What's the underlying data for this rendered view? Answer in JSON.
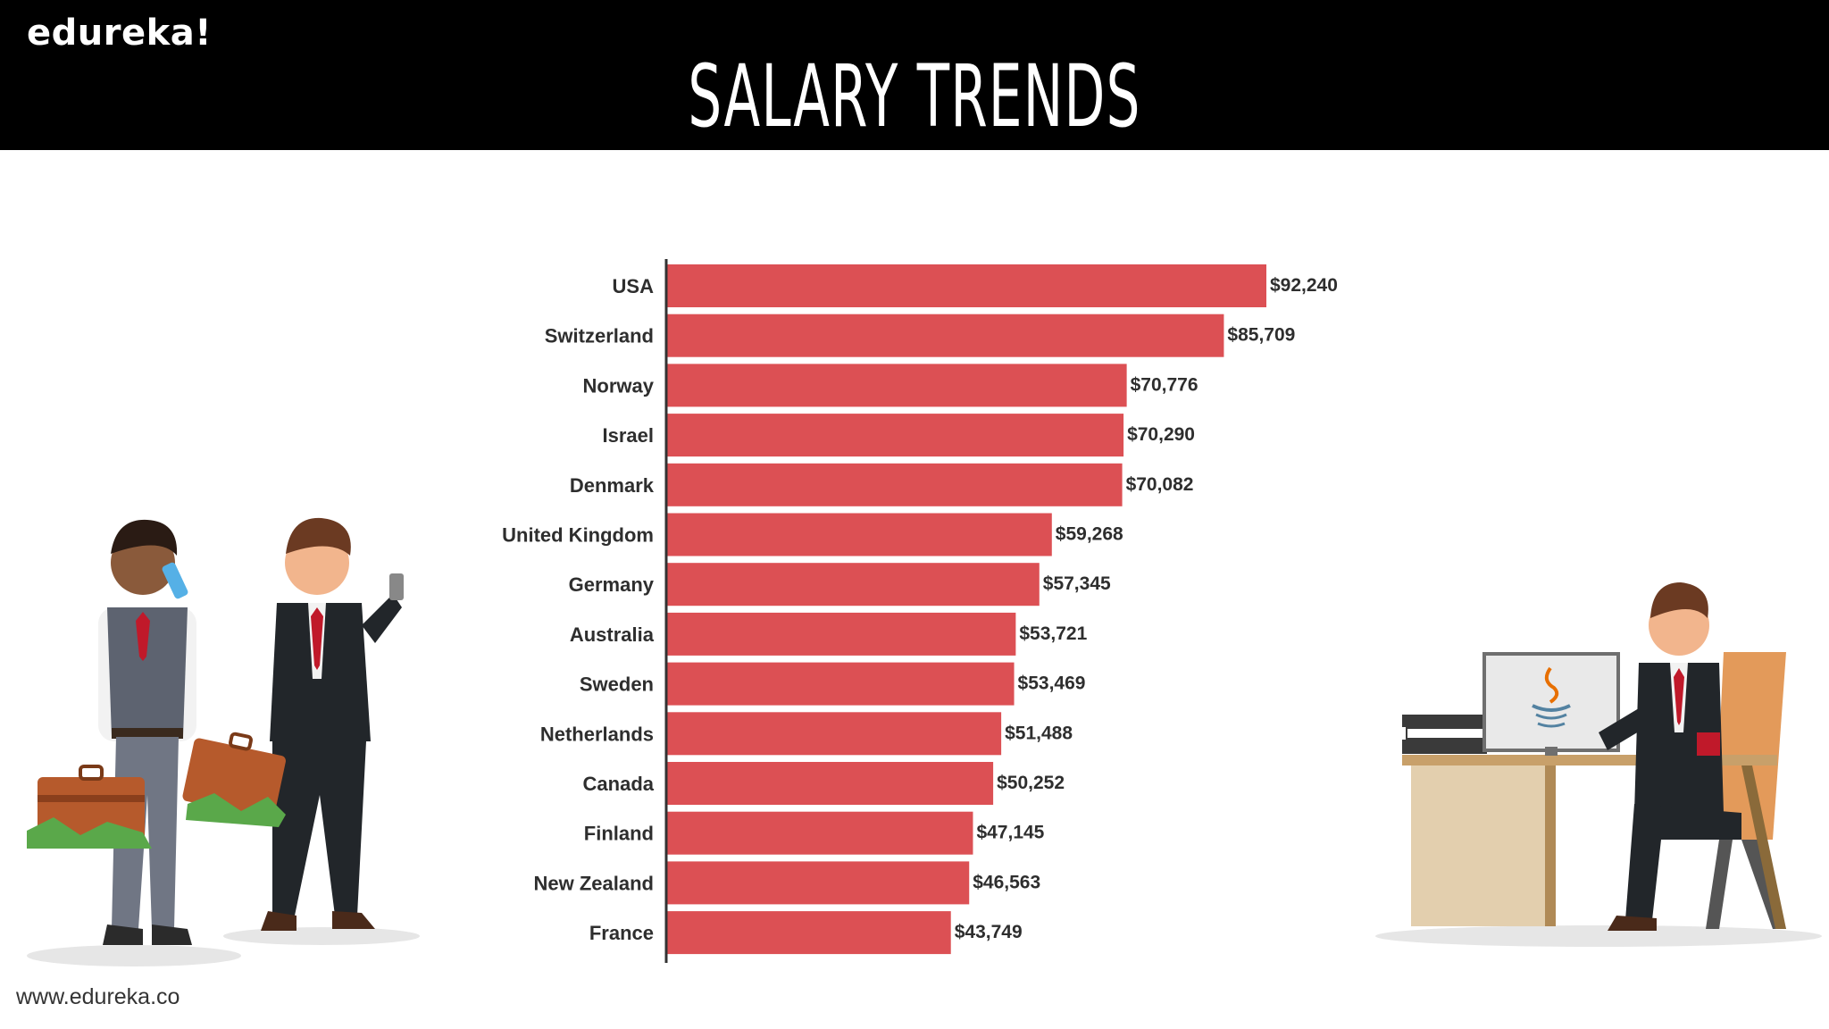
{
  "header": {
    "logo": "edureka!",
    "title": "SALARY TRENDS"
  },
  "footer": {
    "url": "www.edureka.co"
  },
  "colors": {
    "bar": "#dc5054",
    "header_bg": "#000000",
    "axis": "#333333"
  },
  "chart_data": {
    "type": "bar",
    "orientation": "horizontal",
    "categories": [
      "USA",
      "Switzerland",
      "Norway",
      "Israel",
      "Denmark",
      "United Kingdom",
      "Germany",
      "Australia",
      "Sweden",
      "Netherlands",
      "Canada",
      "Finland",
      "New Zealand",
      "France"
    ],
    "values": [
      92240,
      85709,
      70776,
      70290,
      70082,
      59268,
      57345,
      53721,
      53469,
      51488,
      50252,
      47145,
      46563,
      43749
    ],
    "value_labels": [
      "$92,240",
      "$85,709",
      "$70,776",
      "$70,290",
      "$70,082",
      "$59,268",
      "$57,345",
      "$53,721",
      "$53,469",
      "$51,488",
      "$50,252",
      "$47,145",
      "$46,563",
      "$43,749"
    ],
    "xlim": [
      0,
      92240
    ],
    "grid": false,
    "legend": "none"
  },
  "illustrations": {
    "left": "businessmen-with-briefcases-icon",
    "right": "developer-at-desk-icon",
    "monitor_logo": "java-logo-icon"
  }
}
